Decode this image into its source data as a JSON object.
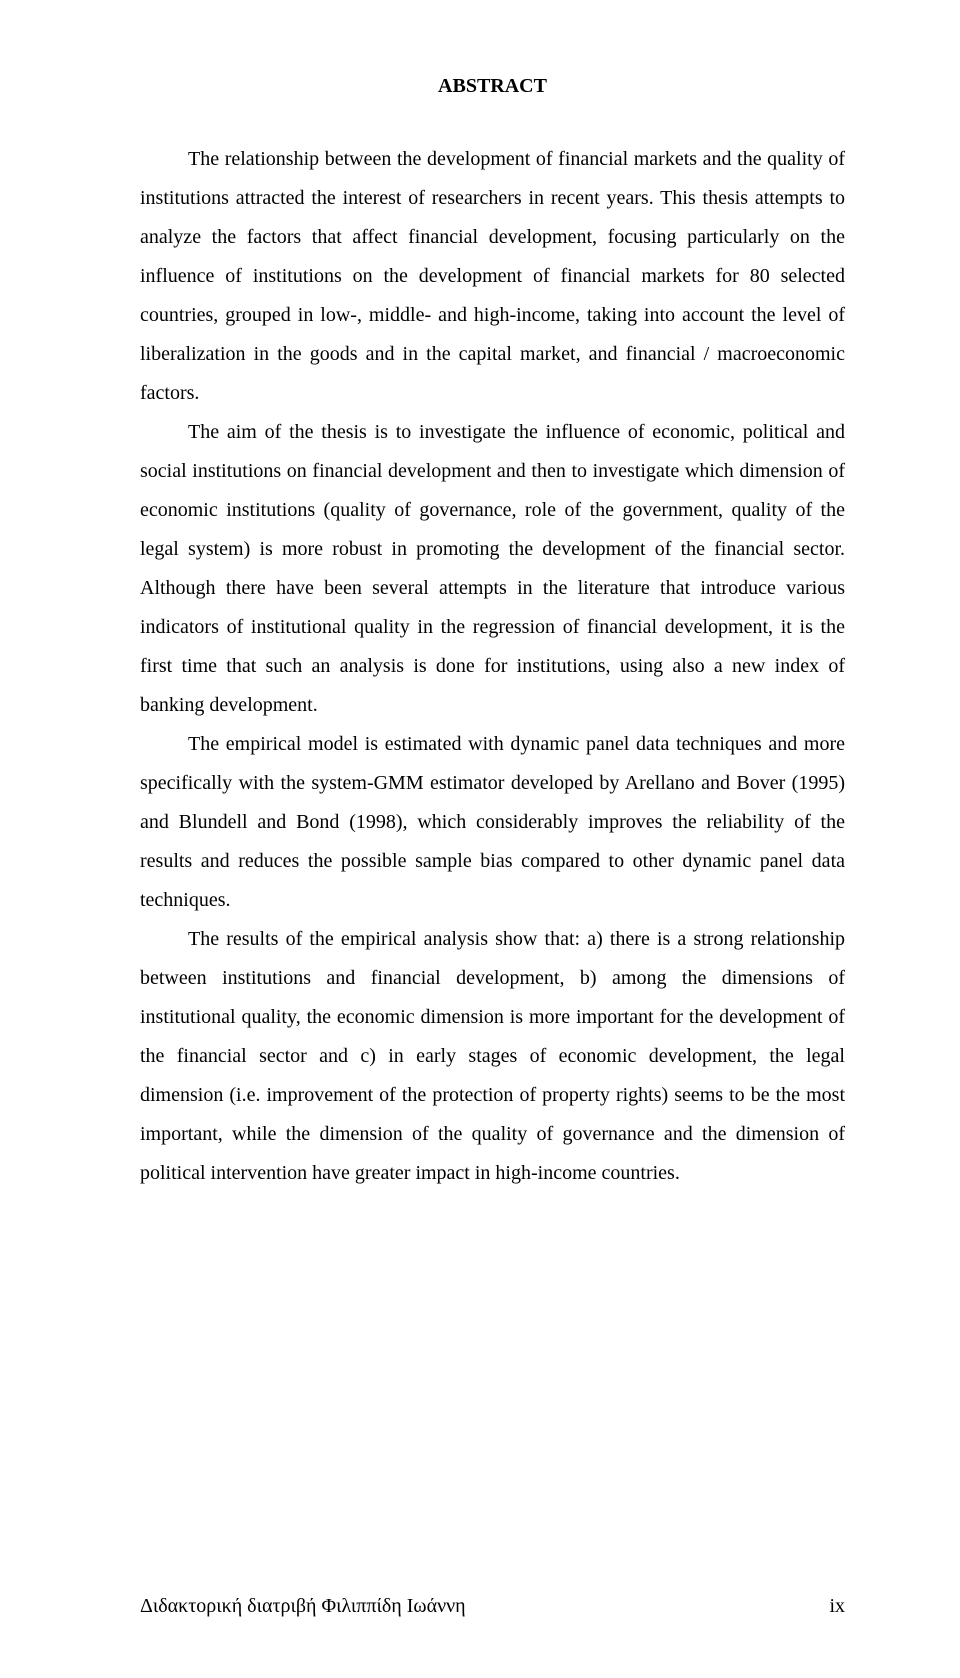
{
  "title": "ABSTRACT",
  "paragraphs": {
    "p1": "The relationship between the development of financial markets and the quality of institutions attracted the interest of researchers in recent years. This thesis attempts to analyze the factors that affect financial development, focusing particularly on the influence of institutions on the development of financial markets for 80 selected countries, grouped in low-, middle- and high-income, taking into account the level of liberalization in the goods and in the capital market, and financial / macroeconomic factors.",
    "p2": "The aim of the thesis is to investigate the influence of economic, political and social institutions on financial development and then to investigate which dimension of economic institutions (quality of governance, role of the government, quality of the legal system) is more robust in promoting the development of the financial sector. Although there have been several attempts in the literature that introduce various indicators of institutional quality in the regression of financial development, it is the first time that such an analysis is done for institutions, using also a new index of banking development.",
    "p3": "The empirical model is estimated with dynamic panel data techniques and more specifically with the system-GMM estimator developed by Arellano and Bover (1995) and Blundell and Bond (1998), which considerably improves the reliability of the results and reduces the possible sample bias compared to other dynamic panel data techniques.",
    "p4": "The results of the empirical analysis show that: a) there is a strong relationship between institutions and financial development, b) among the dimensions of institutional quality, the economic dimension is more important for the development of the financial sector and c) in early stages of economic development, the legal dimension (i.e. improvement of the protection of property rights) seems to be the most important, while the dimension of the quality of governance and the dimension of political intervention have greater impact in high-income countries."
  },
  "footer": {
    "left": "Διδακτορική διατριβή Φιλιππίδη Ιωάννη",
    "right": "ix"
  }
}
